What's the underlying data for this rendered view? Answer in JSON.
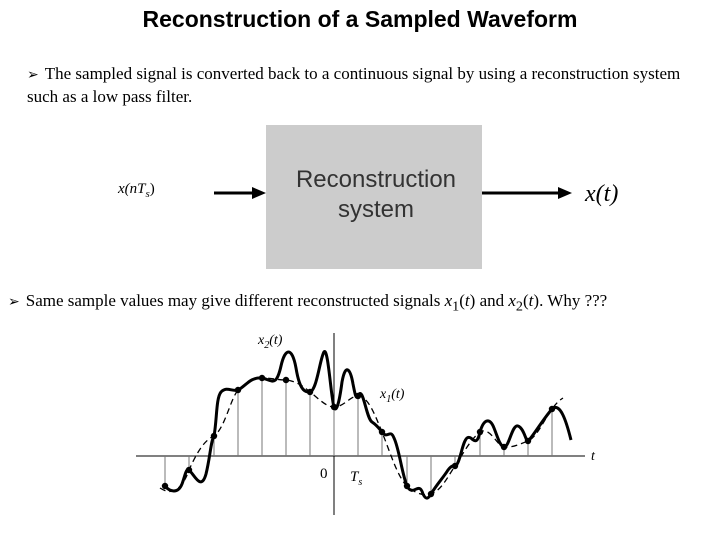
{
  "title": "Reconstruction of a Sampled Waveform",
  "bullets": {
    "marker": "➢",
    "first": "The sampled signal is converted back to a continuous signal by using a reconstruction system such as a low pass filter.",
    "second_prefix": "Same sample values may give different reconstructed signals ",
    "second_mid": " and ",
    "second_suffix": ". Why ???"
  },
  "block": {
    "input_label": "x(nT",
    "input_sub": "s",
    "input_close": ")",
    "line1": "Reconstruction",
    "line2": "system",
    "output_label": "x(t)",
    "box_color": "#cccccc"
  },
  "plot": {
    "x2_label": "x",
    "x2_sub": "2",
    "x1_label": "x",
    "x1_sub": "1",
    "arg": "(t)",
    "t_label": "t",
    "zero_label": "0",
    "ts_label": "T",
    "ts_sub": "s"
  }
}
